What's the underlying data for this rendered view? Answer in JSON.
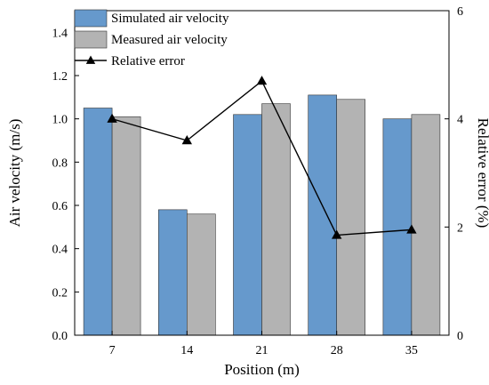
{
  "chart_data": {
    "type": "bar",
    "categories": [
      "7",
      "14",
      "21",
      "28",
      "35"
    ],
    "xlabel": "Position (m)",
    "ylabel": "Air velocity (m/s)",
    "ylabel_right": "Relative error (%)",
    "ylim": [
      0,
      1.5
    ],
    "ylim_right": [
      0,
      6
    ],
    "yticks": [
      "0.0",
      "0.2",
      "0.4",
      "0.6",
      "0.8",
      "1.0",
      "1.2",
      "1.4"
    ],
    "yticks_right": [
      "0",
      "2",
      "4",
      "6"
    ],
    "legend_position": "top-left",
    "series": [
      {
        "name": "Simulated air velocity",
        "type": "bar",
        "axis": "left",
        "color": "#6699cc",
        "values": [
          1.05,
          0.58,
          1.02,
          1.11,
          1.0
        ]
      },
      {
        "name": "Measured air velocity",
        "type": "bar",
        "axis": "left",
        "color": "#b3b3b3",
        "values": [
          1.01,
          0.56,
          1.07,
          1.09,
          1.02
        ]
      },
      {
        "name": "Relative error",
        "type": "line",
        "marker": "triangle",
        "axis": "right",
        "color": "#000000",
        "values": [
          4.0,
          3.6,
          4.7,
          1.85,
          1.95
        ]
      }
    ]
  }
}
